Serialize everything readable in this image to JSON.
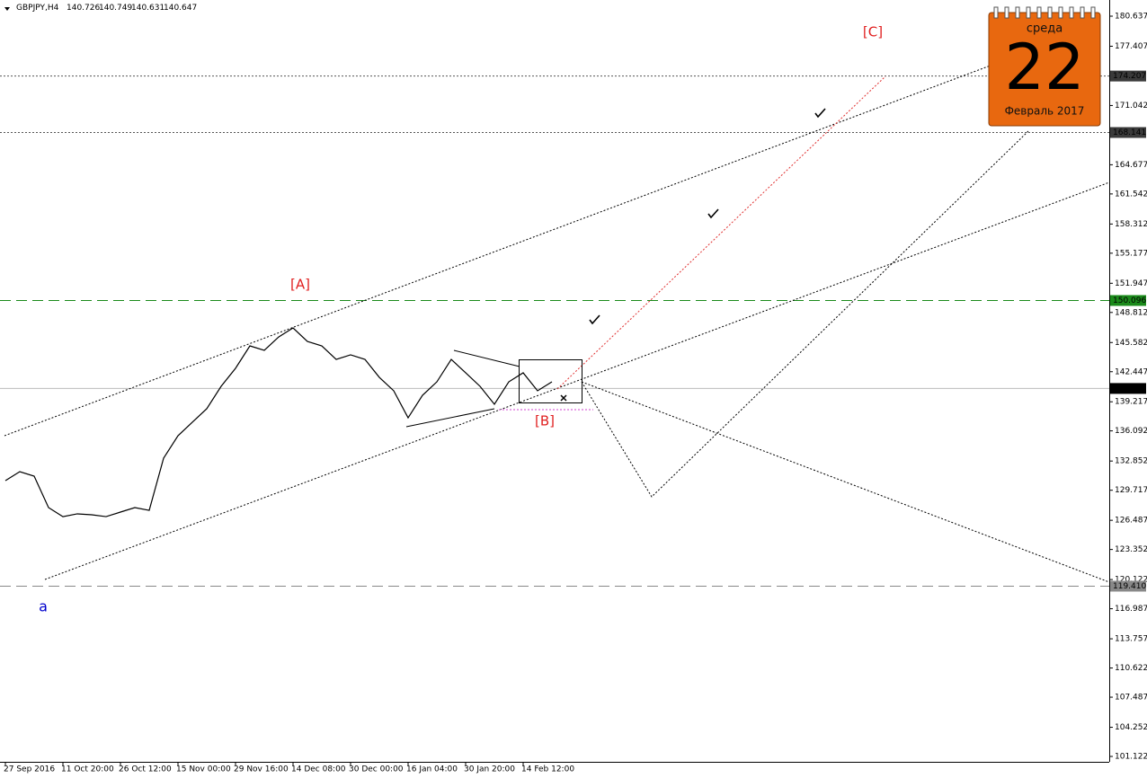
{
  "chart_data": {
    "type": "line",
    "symbol": "GBPJPY,H4",
    "ohlc": [
      140.726,
      140.749,
      140.631,
      140.647
    ],
    "categories": [
      "27 Sep 2016",
      null,
      null,
      null,
      "11 Oct 20:00",
      null,
      null,
      null,
      "26 Oct 12:00",
      null,
      null,
      null,
      "15 Nov 00:00",
      null,
      null,
      null,
      "29 Nov 16:00",
      null,
      null,
      null,
      "14 Dec 08:00",
      null,
      null,
      null,
      "30 Dec 00:00",
      null,
      null,
      null,
      "16 Jan 04:00",
      null,
      null,
      null,
      "30 Jan 20:00",
      null,
      null,
      null,
      "14 Feb 12:00",
      null,
      null
    ],
    "series": [
      {
        "name": "GBPJPY,H4",
        "color": "#000000",
        "values": [
          130.75,
          131.71,
          131.23,
          127.85,
          126.88,
          127.18,
          127.08,
          126.88,
          127.37,
          127.85,
          127.56,
          133.16,
          135.57,
          137.02,
          138.47,
          140.88,
          142.81,
          145.22,
          144.74,
          146.18,
          147.15,
          145.7,
          145.22,
          143.77,
          144.26,
          143.77,
          141.84,
          140.4,
          137.5,
          139.91,
          141.36,
          143.77,
          142.33,
          140.88,
          138.95,
          141.36,
          142.33,
          140.4,
          141.36
        ]
      }
    ],
    "ylim": [
      100.543,
      182.374
    ],
    "yticks": [
      180.637,
      177.407,
      171.042,
      164.677,
      161.542,
      158.312,
      155.177,
      151.947,
      148.812,
      145.582,
      142.447,
      139.217,
      136.092,
      132.852,
      129.717,
      126.487,
      123.352,
      120.122,
      116.987,
      113.757,
      110.622,
      107.487,
      104.252,
      101.122
    ],
    "levels": [
      {
        "value": 174.207,
        "color": "#555555",
        "dash": "2,2",
        "box": "#3a3a3a"
      },
      {
        "value": 168.141,
        "color": "#555555",
        "dash": "2,2",
        "box": "#3a3a3a"
      },
      {
        "value": 150.096,
        "color": "#1a8a1a",
        "dash": "12,6",
        "box": "#1a8a1a"
      },
      {
        "value": 140.647,
        "color": "#bbbbbb",
        "dash": "none",
        "box": "#000000"
      },
      {
        "value": 119.41,
        "label": "119.410",
        "color": "#888888",
        "dash": "12,6",
        "box": "#888888"
      }
    ],
    "annotations": {
      "A": "[A]",
      "B": "[B]",
      "C": "[C]",
      "a": "a"
    },
    "calendar": {
      "weekday": "среда",
      "day": "22",
      "month": "Февраль 2017"
    }
  }
}
